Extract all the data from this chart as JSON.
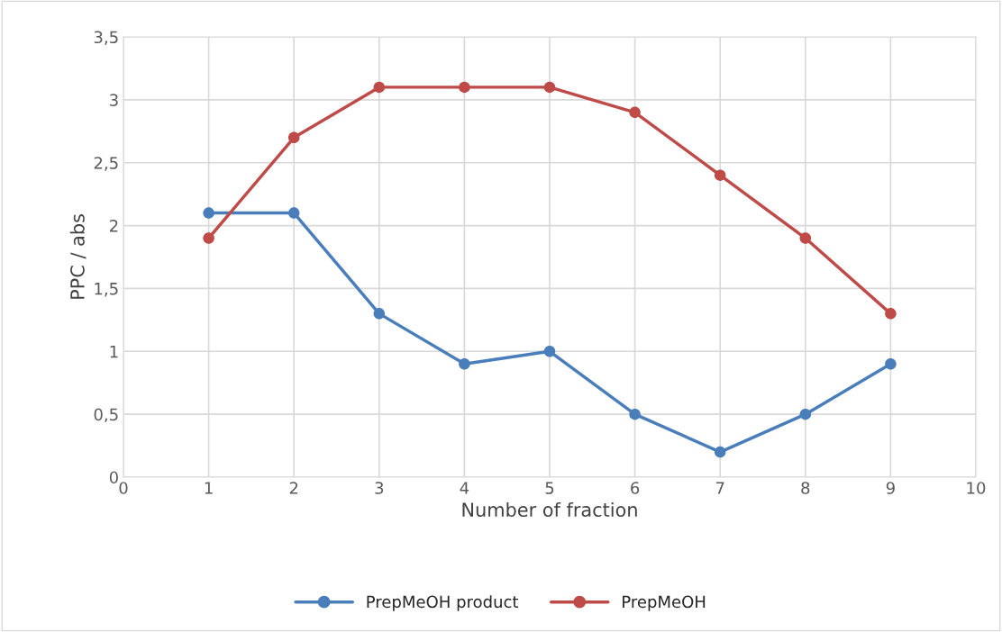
{
  "chart_data": {
    "type": "line",
    "xlabel": "Number of fraction",
    "ylabel": "PPC / abs",
    "x": [
      1,
      2,
      3,
      4,
      5,
      6,
      7,
      8,
      9
    ],
    "series": [
      {
        "name": "PrepMeOH product",
        "color": "#4a7ebb",
        "values": [
          2.1,
          2.1,
          1.3,
          0.9,
          1.0,
          0.5,
          0.2,
          0.5,
          0.9
        ]
      },
      {
        "name": "PrepMeOH",
        "color": "#be4b48",
        "values": [
          1.9,
          2.7,
          3.1,
          3.1,
          3.1,
          2.9,
          2.4,
          1.9,
          1.3
        ]
      }
    ],
    "xlim": [
      0,
      10
    ],
    "xticks": [
      0,
      1,
      2,
      3,
      4,
      5,
      6,
      7,
      8,
      9,
      10
    ],
    "ylim": [
      0,
      3.5
    ],
    "yticks": [
      0,
      {
        "value": 0.5,
        "label": "0,5"
      },
      1,
      {
        "value": 1.5,
        "label": "1,5"
      },
      2,
      {
        "value": 2.5,
        "label": "2,5"
      },
      3,
      {
        "value": 3.5,
        "label": "3,5"
      }
    ],
    "grid": true,
    "legend": "bottom",
    "marker": "circle",
    "line_style": "solid"
  }
}
